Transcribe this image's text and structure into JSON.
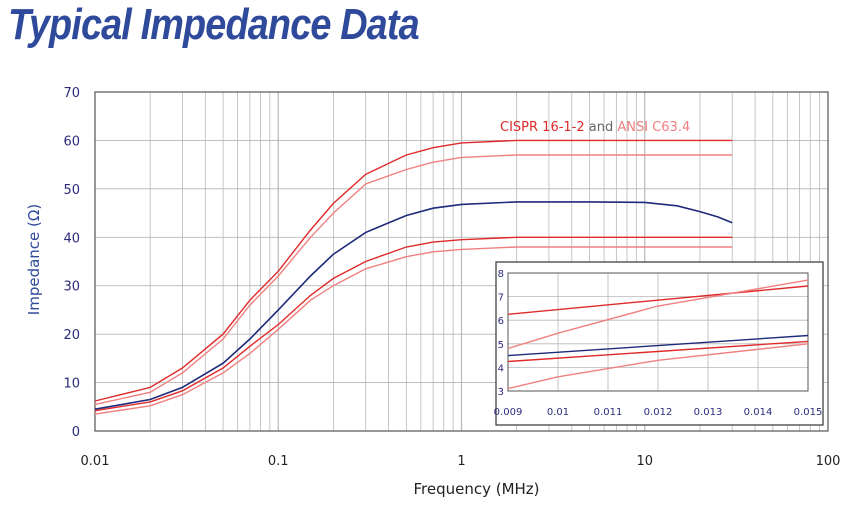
{
  "title": "Typical Impedance Data",
  "colors": {
    "title": "#2f4a9b",
    "limit_dark": "#e02a2a",
    "limit_light": "#f08080",
    "measured": "#1e2a7a",
    "grid": "#b8b8b8"
  },
  "chart_data": {
    "type": "line",
    "title": "",
    "xlabel": "Frequency (MHz)",
    "ylabel": "Impedance (Ω)",
    "xscale": "log",
    "xlim": [
      0.01,
      100
    ],
    "ylim": [
      0,
      70
    ],
    "xticks": [
      "0.01",
      "0.1",
      "1",
      "10",
      "100"
    ],
    "yticks": [
      "0",
      "10",
      "20",
      "30",
      "40",
      "50",
      "60",
      "70"
    ],
    "grid": true,
    "legend": {
      "parts": [
        {
          "text": "CISPR 16-1-2",
          "color": "#e02a2a"
        },
        {
          "text": " and ",
          "color": "#666666"
        },
        {
          "text": "ANSI C63.4",
          "color": "#f08080"
        }
      ],
      "position": "top-right"
    },
    "series": [
      {
        "color": "#e02a2a",
        "x": [
          0.01,
          0.02,
          0.03,
          0.05,
          0.07,
          0.1,
          0.15,
          0.2,
          0.3,
          0.5,
          0.7,
          1,
          2,
          5,
          10,
          30
        ],
        "y": [
          6.2,
          9,
          13,
          20,
          27,
          33,
          41.5,
          47,
          53,
          57,
          58.5,
          59.5,
          60,
          60,
          60,
          60
        ]
      },
      {
        "color": "#f08080",
        "x": [
          0.01,
          0.02,
          0.03,
          0.05,
          0.07,
          0.1,
          0.15,
          0.2,
          0.3,
          0.5,
          0.7,
          1,
          2,
          5,
          10,
          30
        ],
        "y": [
          5.5,
          8,
          12,
          19,
          26,
          32,
          40,
          45,
          51,
          54,
          55.5,
          56.5,
          57,
          57,
          57,
          57
        ]
      },
      {
        "color": "#1e2a7a",
        "x": [
          0.01,
          0.02,
          0.03,
          0.05,
          0.07,
          0.1,
          0.15,
          0.2,
          0.3,
          0.5,
          0.7,
          1,
          2,
          5,
          10,
          15,
          20,
          25,
          30
        ],
        "y": [
          4.5,
          6.5,
          9,
          14,
          19,
          25,
          32,
          36.5,
          41,
          44.5,
          46,
          46.8,
          47.3,
          47.3,
          47.2,
          46.5,
          45.3,
          44.2,
          43
        ]
      },
      {
        "color": "#e02a2a",
        "x": [
          0.01,
          0.02,
          0.03,
          0.05,
          0.07,
          0.1,
          0.15,
          0.2,
          0.3,
          0.5,
          0.7,
          1,
          2,
          5,
          10,
          30
        ],
        "y": [
          4.2,
          6,
          8.3,
          13,
          17.5,
          22,
          28,
          31.5,
          35,
          38,
          39,
          39.5,
          40,
          40,
          40,
          40
        ]
      },
      {
        "color": "#f08080",
        "x": [
          0.01,
          0.02,
          0.03,
          0.05,
          0.07,
          0.1,
          0.15,
          0.2,
          0.3,
          0.5,
          0.7,
          1,
          2,
          5,
          10,
          30
        ],
        "y": [
          3.5,
          5.2,
          7.5,
          12,
          16,
          21,
          27,
          30,
          33.5,
          36,
          37,
          37.5,
          38,
          38,
          38,
          38
        ]
      }
    ],
    "inset": {
      "xlim": [
        0.009,
        0.015
      ],
      "ylim": [
        3,
        8
      ],
      "xticks": [
        "0.009",
        "0.01",
        "0.011",
        "0.012",
        "0.013",
        "0.014",
        "0.015"
      ],
      "yticks": [
        "3",
        "4",
        "5",
        "6",
        "7",
        "8"
      ],
      "series": [
        {
          "color": "#e02a2a",
          "x": [
            0.009,
            0.015
          ],
          "y": [
            6.25,
            7.45
          ]
        },
        {
          "color": "#f08080",
          "x": [
            0.009,
            0.01,
            0.012,
            0.015
          ],
          "y": [
            4.8,
            5.45,
            6.6,
            7.7
          ]
        },
        {
          "color": "#1e2a7a",
          "x": [
            0.009,
            0.015
          ],
          "y": [
            4.5,
            5.35
          ]
        },
        {
          "color": "#e02a2a",
          "x": [
            0.009,
            0.015
          ],
          "y": [
            4.25,
            5.1
          ]
        },
        {
          "color": "#f08080",
          "x": [
            0.009,
            0.01,
            0.012,
            0.015
          ],
          "y": [
            3.1,
            3.6,
            4.3,
            5.0
          ]
        }
      ]
    }
  }
}
